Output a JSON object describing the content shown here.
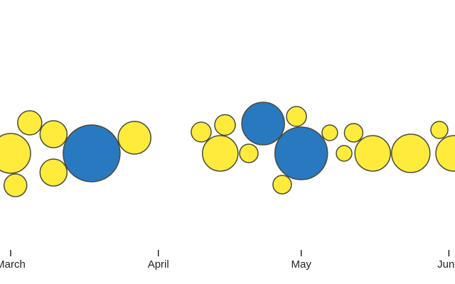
{
  "chart_data": {
    "type": "scatter",
    "subtype": "beeswarm",
    "title": "",
    "xlabel": "",
    "ylabel": "",
    "x_axis": {
      "type": "date",
      "range": [
        "2020-02-26",
        "2020-06-02"
      ],
      "ticks": [
        {
          "date": "2020-03-01",
          "label": "March"
        },
        {
          "date": "2020-04-01",
          "label": "April"
        },
        {
          "date": "2020-05-01",
          "label": "May"
        },
        {
          "date": "2020-06-01",
          "label": "June"
        }
      ]
    },
    "grid": false,
    "legend": "none",
    "colors": {
      "category_a": "#FFEB3B",
      "category_b": "#2979C0",
      "outline": "#4a4a3a",
      "axis": "#222222"
    },
    "points": [
      {
        "date": "2020-03-01",
        "size": 28.0,
        "category": "a"
      },
      {
        "date": "2020-03-02",
        "size": 16.0,
        "category": "a"
      },
      {
        "date": "2020-03-05",
        "size": 17.0,
        "category": "a"
      },
      {
        "date": "2020-03-10",
        "size": 19.0,
        "category": "a"
      },
      {
        "date": "2020-03-10",
        "size": 19.0,
        "category": "a"
      },
      {
        "date": "2020-03-18",
        "size": 40.0,
        "category": "b"
      },
      {
        "date": "2020-03-27",
        "size": 23.0,
        "category": "a"
      },
      {
        "date": "2020-04-10",
        "size": 14.0,
        "category": "a"
      },
      {
        "date": "2020-04-15",
        "size": 14.5,
        "category": "a"
      },
      {
        "date": "2020-04-14",
        "size": 25.0,
        "category": "a"
      },
      {
        "date": "2020-04-20",
        "size": 13.0,
        "category": "a"
      },
      {
        "date": "2020-04-23",
        "size": 30.0,
        "category": "b"
      },
      {
        "date": "2020-04-27",
        "size": 13.0,
        "category": "a"
      },
      {
        "date": "2020-04-30",
        "size": 14.0,
        "category": "a"
      },
      {
        "date": "2020-05-01",
        "size": 37.0,
        "category": "b"
      },
      {
        "date": "2020-05-07",
        "size": 11.0,
        "category": "a"
      },
      {
        "date": "2020-05-10",
        "size": 11.0,
        "category": "a"
      },
      {
        "date": "2020-05-12",
        "size": 13.0,
        "category": "a"
      },
      {
        "date": "2020-05-16",
        "size": 25.0,
        "category": "a"
      },
      {
        "date": "2020-05-24",
        "size": 27.0,
        "category": "a"
      },
      {
        "date": "2020-05-30",
        "size": 12.0,
        "category": "a"
      },
      {
        "date": "2020-06-02",
        "size": 25.0,
        "category": "a"
      }
    ]
  }
}
